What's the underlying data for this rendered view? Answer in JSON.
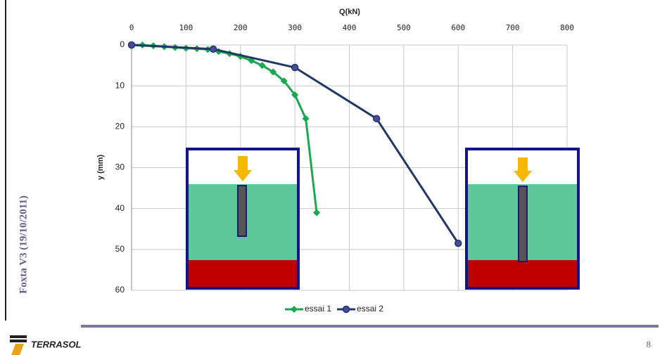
{
  "chart_data": {
    "type": "line",
    "x_label": "Q(kN)",
    "y_label": "y (mm)",
    "xlim": [
      0,
      800
    ],
    "xticks": [
      0,
      100,
      200,
      300,
      400,
      500,
      600,
      700,
      800
    ],
    "ylim": [
      0,
      60
    ],
    "yticks": [
      0,
      10,
      20,
      30,
      40,
      50,
      60
    ],
    "y_inverted": true,
    "grid": true,
    "legend": "bottom",
    "series": [
      {
        "name": "essai 1",
        "color": "#19a84f",
        "marker": "diamond",
        "x": [
          0,
          20,
          40,
          60,
          80,
          100,
          120,
          140,
          160,
          180,
          200,
          220,
          240,
          260,
          280,
          300,
          320,
          340
        ],
        "values": [
          0,
          0,
          0.2,
          0.4,
          0.6,
          0.8,
          0.9,
          1.1,
          1.6,
          2.1,
          2.8,
          3.8,
          5,
          6.6,
          8.8,
          12.2,
          18,
          41
        ]
      },
      {
        "name": "essai 2",
        "color": "#1f3864",
        "marker": "circle",
        "x": [
          0,
          150,
          300,
          450,
          600
        ],
        "values": [
          0,
          1,
          5.5,
          18,
          48.5
        ]
      }
    ]
  },
  "sidebar_text": "Foxta V3 (19/10/2011)",
  "logo_text": "TERRASOL",
  "page_number": "8"
}
